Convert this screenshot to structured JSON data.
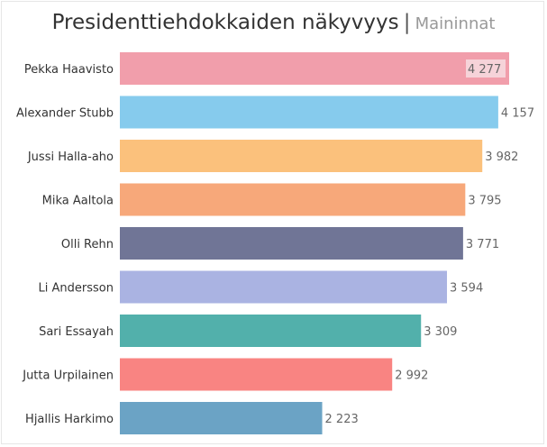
{
  "title": {
    "main": "Presidenttiehdokkaiden näkyvyys",
    "separator": "|",
    "subtitle": "Maininnat"
  },
  "chart_data": {
    "type": "bar",
    "orientation": "horizontal",
    "categories": [
      "Pekka Haavisto",
      "Alexander Stubb",
      "Jussi Halla-aho",
      "Mika Aaltola",
      "Olli Rehn",
      "Li Andersson",
      "Sari Essayah",
      "Jutta Urpilainen",
      "Hjallis Harkimo"
    ],
    "values": [
      4277,
      4157,
      3982,
      3795,
      3771,
      3594,
      3309,
      2992,
      2223
    ],
    "value_labels": [
      "4 277",
      "4 157",
      "3 982",
      "3 795",
      "3 771",
      "3 594",
      "3 309",
      "2 992",
      "2 223"
    ],
    "colors": [
      "#f19eab",
      "#86cbed",
      "#fbc17c",
      "#f7a87a",
      "#707596",
      "#aab3e2",
      "#52b0ab",
      "#f98482",
      "#6ba3c5"
    ],
    "xlim": [
      0,
      4277
    ],
    "grid": false,
    "legend": "none"
  }
}
